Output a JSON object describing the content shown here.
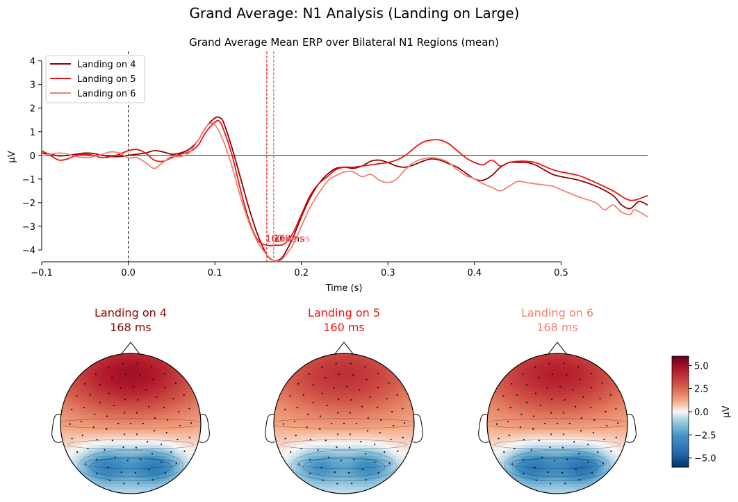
{
  "figure": {
    "title": "Grand Average: N1 Analysis (Landing on Large)"
  },
  "colors": {
    "c4": "#8b0000",
    "c5": "#ee1111",
    "c6": "#f08070"
  },
  "chart_data": [
    {
      "type": "line",
      "title": "Grand Average Mean ERP over Bilateral N1 Regions (mean)",
      "xlabel": "Time (s)",
      "ylabel": "µV",
      "xlim": [
        -0.1,
        0.6
      ],
      "ylim": [
        -4.5,
        4.4
      ],
      "xticks": [
        -0.1,
        0.0,
        0.1,
        0.2,
        0.3,
        0.4,
        0.5
      ],
      "xtick_labels": [
        "−0.1",
        "0.0",
        "0.1",
        "0.2",
        "0.3",
        "0.4",
        "0.5"
      ],
      "yticks": [
        -4,
        -3,
        -2,
        -1,
        0,
        1,
        2,
        3,
        4
      ],
      "ytick_labels": [
        "−4",
        "−3",
        "−2",
        "−1",
        "0",
        "1",
        "2",
        "3",
        "4"
      ],
      "legend_position": "top-left",
      "series": [
        {
          "name": "Landing on 4",
          "color": "#8b0000",
          "peak_time": 0.168,
          "peak_label": "168ms",
          "points": [
            [
              -0.1,
              0.1
            ],
            [
              -0.09,
              0.05
            ],
            [
              -0.08,
              -0.02
            ],
            [
              -0.07,
              0.0
            ],
            [
              -0.06,
              0.05
            ],
            [
              -0.05,
              0.1
            ],
            [
              -0.04,
              0.08
            ],
            [
              -0.03,
              0.0
            ],
            [
              -0.02,
              -0.05
            ],
            [
              -0.01,
              -0.05
            ],
            [
              0.0,
              0.0
            ],
            [
              0.01,
              0.05
            ],
            [
              0.02,
              0.1
            ],
            [
              0.03,
              0.2
            ],
            [
              0.04,
              0.15
            ],
            [
              0.05,
              0.05
            ],
            [
              0.06,
              0.1
            ],
            [
              0.07,
              0.25
            ],
            [
              0.08,
              0.6
            ],
            [
              0.09,
              1.2
            ],
            [
              0.1,
              1.58
            ],
            [
              0.105,
              1.6
            ],
            [
              0.11,
              1.4
            ],
            [
              0.12,
              0.3
            ],
            [
              0.13,
              -1.0
            ],
            [
              0.14,
              -2.3
            ],
            [
              0.15,
              -3.4
            ],
            [
              0.16,
              -4.2
            ],
            [
              0.168,
              -4.45
            ],
            [
              0.175,
              -4.4
            ],
            [
              0.18,
              -4.2
            ],
            [
              0.19,
              -3.5
            ],
            [
              0.2,
              -2.6
            ],
            [
              0.21,
              -1.8
            ],
            [
              0.22,
              -1.2
            ],
            [
              0.23,
              -0.8
            ],
            [
              0.24,
              -0.55
            ],
            [
              0.25,
              -0.5
            ],
            [
              0.26,
              -0.55
            ],
            [
              0.27,
              -0.45
            ],
            [
              0.28,
              -0.25
            ],
            [
              0.29,
              -0.2
            ],
            [
              0.3,
              -0.3
            ],
            [
              0.31,
              -0.45
            ],
            [
              0.32,
              -0.5
            ],
            [
              0.33,
              -0.4
            ],
            [
              0.34,
              -0.25
            ],
            [
              0.35,
              -0.15
            ],
            [
              0.36,
              -0.2
            ],
            [
              0.37,
              -0.35
            ],
            [
              0.38,
              -0.5
            ],
            [
              0.39,
              -0.75
            ],
            [
              0.4,
              -1.0
            ],
            [
              0.41,
              -1.05
            ],
            [
              0.42,
              -0.85
            ],
            [
              0.43,
              -0.5
            ],
            [
              0.44,
              -0.3
            ],
            [
              0.45,
              -0.3
            ],
            [
              0.46,
              -0.3
            ],
            [
              0.47,
              -0.4
            ],
            [
              0.48,
              -0.6
            ],
            [
              0.49,
              -0.8
            ],
            [
              0.5,
              -0.9
            ],
            [
              0.52,
              -1.05
            ],
            [
              0.54,
              -1.3
            ],
            [
              0.56,
              -1.7
            ],
            [
              0.57,
              -2.1
            ],
            [
              0.58,
              -2.25
            ],
            [
              0.59,
              -1.95
            ],
            [
              0.6,
              -2.1
            ]
          ]
        },
        {
          "name": "Landing on 5",
          "color": "#ee1111",
          "peak_time": 0.16,
          "peak_label": "160ms",
          "points": [
            [
              -0.1,
              0.2
            ],
            [
              -0.09,
              0.0
            ],
            [
              -0.08,
              -0.2
            ],
            [
              -0.07,
              -0.15
            ],
            [
              -0.06,
              0.0
            ],
            [
              -0.05,
              0.05
            ],
            [
              -0.04,
              0.0
            ],
            [
              -0.03,
              -0.1
            ],
            [
              -0.02,
              -0.05
            ],
            [
              -0.01,
              0.05
            ],
            [
              0.0,
              0.2
            ],
            [
              0.01,
              0.25
            ],
            [
              0.02,
              0.1
            ],
            [
              0.03,
              -0.2
            ],
            [
              0.04,
              -0.25
            ],
            [
              0.05,
              -0.1
            ],
            [
              0.06,
              0.05
            ],
            [
              0.07,
              0.15
            ],
            [
              0.08,
              0.4
            ],
            [
              0.09,
              1.0
            ],
            [
              0.1,
              1.4
            ],
            [
              0.105,
              1.45
            ],
            [
              0.11,
              1.1
            ],
            [
              0.12,
              0.0
            ],
            [
              0.13,
              -1.5
            ],
            [
              0.14,
              -2.8
            ],
            [
              0.15,
              -3.6
            ],
            [
              0.16,
              -3.8
            ],
            [
              0.17,
              -3.8
            ],
            [
              0.18,
              -3.75
            ],
            [
              0.19,
              -3.3
            ],
            [
              0.2,
              -2.5
            ],
            [
              0.21,
              -1.7
            ],
            [
              0.22,
              -1.2
            ],
            [
              0.23,
              -0.9
            ],
            [
              0.24,
              -0.6
            ],
            [
              0.25,
              -0.5
            ],
            [
              0.26,
              -0.5
            ],
            [
              0.27,
              -0.45
            ],
            [
              0.28,
              -0.4
            ],
            [
              0.29,
              -0.35
            ],
            [
              0.3,
              -0.3
            ],
            [
              0.31,
              -0.2
            ],
            [
              0.32,
              0.0
            ],
            [
              0.33,
              0.3
            ],
            [
              0.34,
              0.55
            ],
            [
              0.35,
              0.65
            ],
            [
              0.36,
              0.65
            ],
            [
              0.37,
              0.5
            ],
            [
              0.38,
              0.2
            ],
            [
              0.39,
              -0.1
            ],
            [
              0.4,
              -0.3
            ],
            [
              0.41,
              -0.4
            ],
            [
              0.42,
              -0.2
            ],
            [
              0.43,
              -0.45
            ],
            [
              0.44,
              -0.3
            ],
            [
              0.45,
              -0.25
            ],
            [
              0.46,
              -0.25
            ],
            [
              0.47,
              -0.3
            ],
            [
              0.48,
              -0.45
            ],
            [
              0.49,
              -0.6
            ],
            [
              0.5,
              -0.7
            ],
            [
              0.52,
              -0.85
            ],
            [
              0.54,
              -1.15
            ],
            [
              0.56,
              -1.5
            ],
            [
              0.58,
              -1.9
            ],
            [
              0.6,
              -1.7
            ]
          ]
        },
        {
          "name": "Landing on 6",
          "color": "#f08070",
          "peak_time": 0.168,
          "peak_label": "168ms",
          "points": [
            [
              -0.1,
              0.0
            ],
            [
              -0.09,
              0.05
            ],
            [
              -0.08,
              0.1
            ],
            [
              -0.07,
              0.05
            ],
            [
              -0.06,
              -0.05
            ],
            [
              -0.05,
              -0.1
            ],
            [
              -0.04,
              -0.05
            ],
            [
              -0.03,
              0.05
            ],
            [
              -0.02,
              0.15
            ],
            [
              -0.01,
              0.1
            ],
            [
              0.0,
              -0.1
            ],
            [
              0.01,
              -0.1
            ],
            [
              0.02,
              -0.3
            ],
            [
              0.03,
              -0.55
            ],
            [
              0.04,
              -0.3
            ],
            [
              0.05,
              -0.05
            ],
            [
              0.06,
              -0.05
            ],
            [
              0.07,
              0.1
            ],
            [
              0.08,
              0.6
            ],
            [
              0.09,
              1.2
            ],
            [
              0.095,
              1.35
            ],
            [
              0.1,
              1.3
            ],
            [
              0.11,
              0.6
            ],
            [
              0.12,
              -0.5
            ],
            [
              0.13,
              -1.8
            ],
            [
              0.14,
              -2.9
            ],
            [
              0.15,
              -3.7
            ],
            [
              0.16,
              -4.2
            ],
            [
              0.168,
              -4.45
            ],
            [
              0.175,
              -4.45
            ],
            [
              0.18,
              -4.3
            ],
            [
              0.19,
              -3.8
            ],
            [
              0.2,
              -3.0
            ],
            [
              0.21,
              -2.2
            ],
            [
              0.22,
              -1.6
            ],
            [
              0.23,
              -1.1
            ],
            [
              0.24,
              -0.85
            ],
            [
              0.25,
              -0.7
            ],
            [
              0.26,
              -0.7
            ],
            [
              0.27,
              -0.9
            ],
            [
              0.28,
              -0.8
            ],
            [
              0.29,
              -1.05
            ],
            [
              0.3,
              -1.15
            ],
            [
              0.31,
              -1.0
            ],
            [
              0.32,
              -0.6
            ],
            [
              0.33,
              -0.3
            ],
            [
              0.34,
              -0.15
            ],
            [
              0.35,
              -0.1
            ],
            [
              0.36,
              -0.15
            ],
            [
              0.37,
              -0.3
            ],
            [
              0.38,
              -0.6
            ],
            [
              0.39,
              -0.85
            ],
            [
              0.4,
              -1.0
            ],
            [
              0.41,
              -1.2
            ],
            [
              0.42,
              -1.35
            ],
            [
              0.43,
              -1.5
            ],
            [
              0.44,
              -1.3
            ],
            [
              0.45,
              -1.1
            ],
            [
              0.46,
              -1.15
            ],
            [
              0.47,
              -1.2
            ],
            [
              0.48,
              -1.25
            ],
            [
              0.49,
              -1.3
            ],
            [
              0.5,
              -1.45
            ],
            [
              0.52,
              -1.75
            ],
            [
              0.54,
              -2.0
            ],
            [
              0.55,
              -2.3
            ],
            [
              0.56,
              -2.1
            ],
            [
              0.57,
              -2.4
            ],
            [
              0.58,
              -2.5
            ],
            [
              0.585,
              -2.3
            ],
            [
              0.6,
              -2.6
            ]
          ]
        }
      ]
    },
    {
      "type": "heatmap",
      "subtype": "topomap",
      "colorbar": {
        "label": "µV",
        "range": [
          -6,
          6
        ],
        "ticks": [
          5.0,
          2.5,
          0.0,
          -2.5,
          -5.0
        ],
        "tick_labels": [
          "5.0",
          "2.5",
          "0.0",
          "−2.5",
          "−5.0"
        ],
        "colormap": "RdBu_r"
      },
      "maps": [
        {
          "title": "Landing on 4",
          "subtitle": "168 ms",
          "color": "#8b0000",
          "frontal_max": 4.0,
          "posterior_min": -5.5
        },
        {
          "title": "Landing on 5",
          "subtitle": "160 ms",
          "color": "#ee1111",
          "frontal_max": 3.0,
          "posterior_min": -4.5
        },
        {
          "title": "Landing on 6",
          "subtitle": "168 ms",
          "color": "#f08070",
          "frontal_max": 3.5,
          "posterior_min": -6.0
        }
      ]
    }
  ]
}
